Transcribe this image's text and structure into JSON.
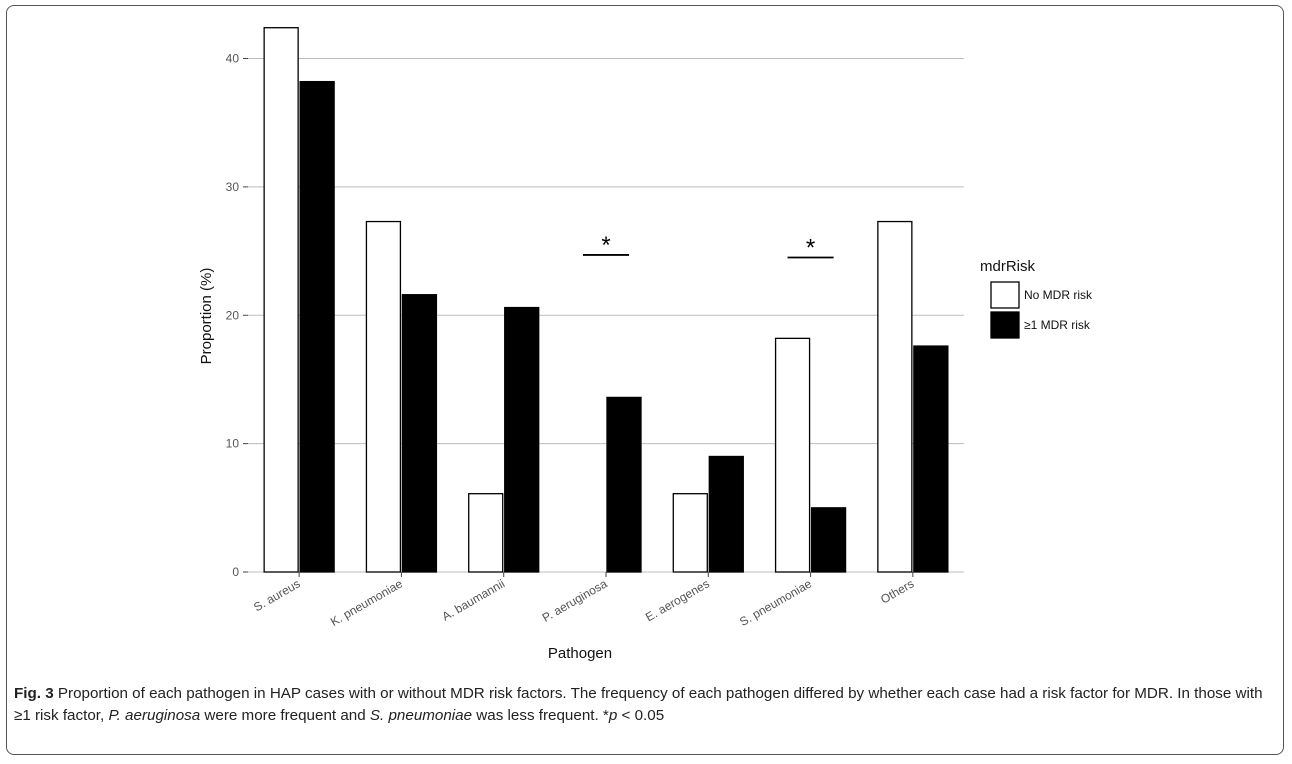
{
  "chart_data": {
    "type": "bar",
    "xlabel": "Pathogen",
    "ylabel": "Proportion (%)",
    "ylim": [
      0,
      43
    ],
    "yticks": [
      0,
      10,
      20,
      30,
      40
    ],
    "grid": "horizontal",
    "categories": [
      "S. aureus",
      "K. pneumoniae",
      "A. baumannii",
      "P. aeruginosa",
      "E. aerogenes",
      "S. pneumoniae",
      "Others"
    ],
    "series": [
      {
        "name": "No MDR risk",
        "fill": "#ffffff",
        "values": [
          42.4,
          27.3,
          6.1,
          0.0,
          6.1,
          18.2,
          27.3
        ]
      },
      {
        "name": "≥1 MDR risk",
        "fill": "#000000",
        "values": [
          38.2,
          21.6,
          20.6,
          13.6,
          9.0,
          5.0,
          17.6
        ]
      }
    ],
    "legend": {
      "title": "mdrRisk",
      "position": "right"
    },
    "annotations": [
      {
        "text": "*",
        "category": "P. aeruginosa",
        "y": 24.7
      },
      {
        "text": "*",
        "category": "S. pneumoniae",
        "y": 24.5
      }
    ]
  },
  "caption": {
    "label": "Fig. 3",
    "text1": " Proportion of each pathogen in HAP cases with or without MDR risk factors. The frequency of each pathogen differed by whether each case had a risk factor for MDR. In those with ≥1 risk factor, ",
    "ital1": "P. aeruginosa",
    "text2": " were more frequent and ",
    "ital2": "S. pneumoniae",
    "text3": " was less frequent. *",
    "ital3": "p",
    "text4": " < 0.05"
  }
}
